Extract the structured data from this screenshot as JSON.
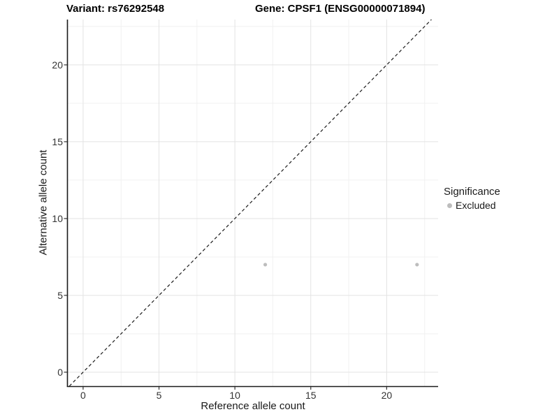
{
  "header": {
    "variant_title": "Variant: rs76292548",
    "gene_title": "Gene: CPSF1 (ENSG00000071894)"
  },
  "chart_data": {
    "type": "scatter",
    "xlabel": "Reference allele count",
    "ylabel": "Alternative allele count",
    "xlim": [
      -1.01,
      23.39
    ],
    "ylim": [
      -0.91,
      22.95
    ],
    "x_ticks": [
      0,
      5,
      10,
      15,
      20
    ],
    "y_ticks": [
      0,
      5,
      10,
      15,
      20
    ],
    "x_minor_gridlines": [
      2.5,
      7.5,
      12.5,
      17.5,
      22.5
    ],
    "y_minor_gridlines": [
      2.5,
      7.5,
      12.5,
      17.5,
      22.5
    ],
    "grid": true,
    "series": [
      {
        "name": "Excluded",
        "color": "#bdbdbd",
        "points": [
          {
            "x": 12,
            "y": 7
          },
          {
            "x": 22,
            "y": 7
          }
        ]
      }
    ],
    "reference_line": {
      "type": "identity",
      "slope": 1,
      "intercept": 0,
      "style": "dashed",
      "color": "#1c1c1c"
    },
    "legend": {
      "position": "right",
      "title": "Significance",
      "entries": [
        {
          "label": "Excluded",
          "color": "#bdbdbd"
        }
      ]
    },
    "colors": {
      "background": "#ffffff",
      "grid_major": "#e3e3e3",
      "grid_minor": "#f1f1f1",
      "axis_line": "#1a1a1a",
      "tick_mark": "#333333",
      "tick_text": "#333333",
      "title_text": "#000000"
    }
  }
}
